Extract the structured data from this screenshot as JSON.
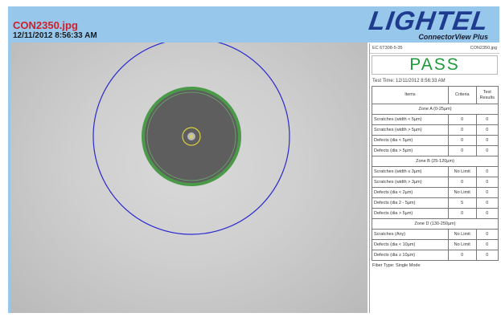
{
  "header": {
    "file_name": "CON2350.jpg",
    "timestamp": "12/11/2012 8:56:33 AM",
    "logo_word": "LIGHTEL",
    "logo_sub": "ConnectorView Plus"
  },
  "panel": {
    "id_left": "EC 6T308-5-35",
    "id_right": "CON2350.jpg",
    "result": "PASS",
    "test_time": "Test Time: 12/11/2012 8:56:33 AM",
    "columns": {
      "items": "Items",
      "criteria": "Criteria",
      "results": "Test Results"
    },
    "zones": [
      {
        "title": "Zone A (0-25µm)",
        "rows": [
          {
            "item": "Scratches (width < 5µm)",
            "criteria": "0",
            "result": "0"
          },
          {
            "item": "Scratches (width > 5µm)",
            "criteria": "0",
            "result": "0"
          },
          {
            "item": "Defects (dia < 5µm)",
            "criteria": "0",
            "result": "0"
          },
          {
            "item": "Defects (dia > 5µm)",
            "criteria": "0",
            "result": "0"
          }
        ]
      },
      {
        "title": "Zone B (25-120µm)",
        "rows": [
          {
            "item": "Scratches (width ≤ 3µm)",
            "criteria": "No Limit",
            "result": "0"
          },
          {
            "item": "Scratches (width > 3µm)",
            "criteria": "0",
            "result": "0"
          },
          {
            "item": "Defects (dia < 2µm)",
            "criteria": "No Limit",
            "result": "0"
          },
          {
            "item": "Defects (dia 2 - 5µm)",
            "criteria": "5",
            "result": "0"
          },
          {
            "item": "Defects (dia > 5µm)",
            "criteria": "0",
            "result": "0"
          }
        ]
      },
      {
        "title": "Zone D (130-250µm)",
        "rows": [
          {
            "item": "Scratches (Any)",
            "criteria": "No Limit",
            "result": "0"
          },
          {
            "item": "Defects (dia < 10µm)",
            "criteria": "No Limit",
            "result": "0"
          },
          {
            "item": "Defects (dia ≥ 10µm)",
            "criteria": "0",
            "result": "0"
          }
        ]
      }
    ],
    "fiber_type": "Fiber Type: Single Mode"
  },
  "colors": {
    "header_bg": "#97c7ea",
    "file_name": "#d0202a",
    "logo": "#1e3b8f",
    "pass": "#1e9a3a",
    "outer_ring": "#2a2ad0",
    "cladding_ring": "#4a9a4a",
    "core_ring": "#d8d040"
  },
  "image": {
    "icon": "fiber-endface-image"
  }
}
